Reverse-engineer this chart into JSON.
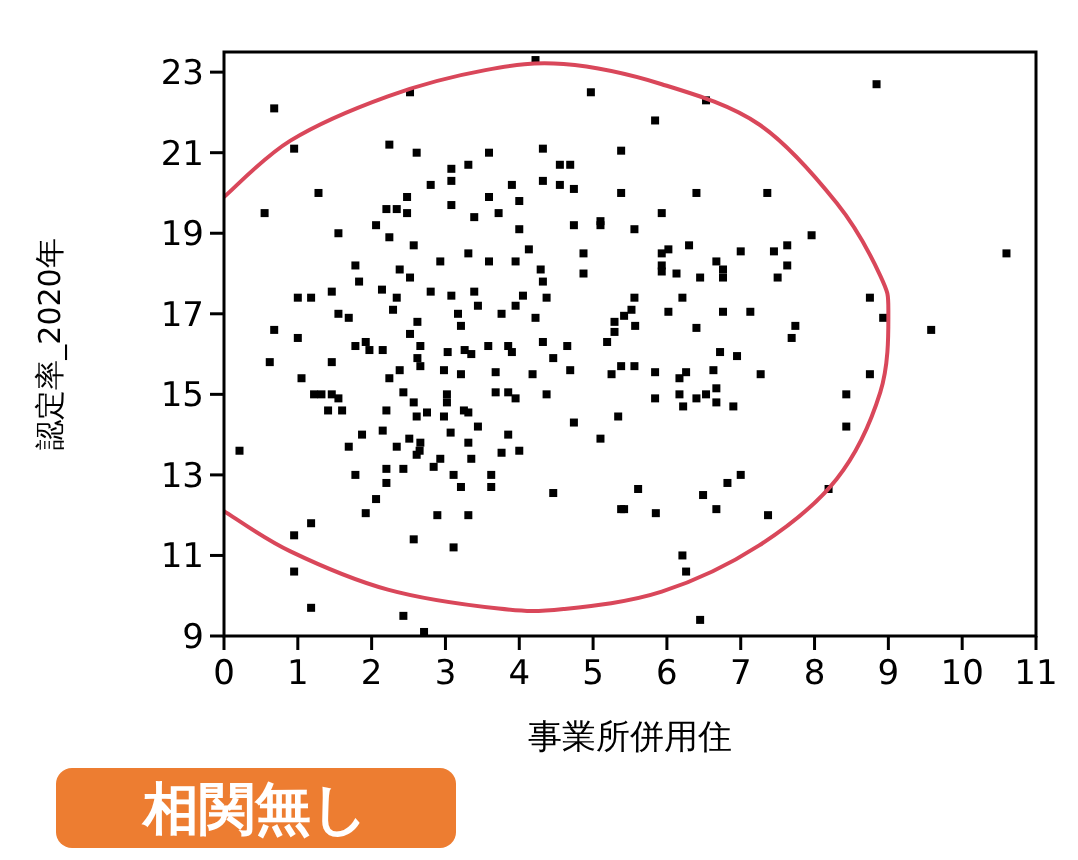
{
  "chart_data": {
    "type": "scatter",
    "xlabel": "事業所併用住",
    "ylabel": "認定率_2020年",
    "annotations": [
      "相関無し"
    ],
    "xlim": [
      0,
      11
    ],
    "ylim": [
      9,
      23.5
    ],
    "xticks": [
      0,
      1,
      2,
      3,
      4,
      5,
      6,
      7,
      8,
      9,
      10,
      11
    ],
    "yticks": [
      9,
      11,
      13,
      15,
      17,
      19,
      21,
      23
    ],
    "series": [
      {
        "marker": "square",
        "color": "#000000",
        "x": [
          0.68,
          0.95,
          1.28,
          0.55,
          2.52,
          4.22,
          4.97,
          2.24,
          2.61,
          3.08,
          3.31,
          3.59,
          4.32,
          4.55,
          4.69,
          2.8,
          3.08,
          3.08,
          2.48,
          2.2,
          2.34,
          2.48,
          3.59,
          3.9,
          4.0,
          4.32,
          4.55,
          4.74,
          5.1,
          5.1,
          3.39,
          3.72,
          4.0,
          4.74,
          1.55,
          2.06,
          2.24,
          2.57,
          3.31,
          3.59,
          3.95,
          4.13,
          4.87,
          2.93,
          1.78,
          2.38,
          4.87,
          4.29,
          1.83,
          2.14,
          2.34,
          2.52,
          2.8,
          3.08,
          3.39,
          4.32,
          4.37,
          4.05,
          1.0,
          1.18,
          1.46,
          2.29,
          3.44,
          3.95,
          3.76,
          4.22,
          3.17,
          3.21,
          2.62,
          1.55,
          1.69,
          0.68,
          1.0,
          5.29,
          1.78,
          1.92,
          1.97,
          2.15,
          2.52,
          2.66,
          3.03,
          3.26,
          3.35,
          3.58,
          3.85,
          3.9,
          4.32,
          4.65,
          5.19,
          0.62,
          1.46,
          1.05,
          2.38,
          2.62,
          2.66,
          2.24,
          2.98,
          3.21,
          3.68,
          4.18,
          4.46,
          4.69,
          5.25,
          5.38,
          1.22,
          1.32,
          1.46,
          1.55,
          1.41,
          1.6,
          2.43,
          2.57,
          3.02,
          3.02,
          3.68,
          3.85,
          3.95,
          4.37,
          2.2,
          2.75,
          2.61,
          2.98,
          3.25,
          3.31,
          4.74,
          5.34,
          2.15,
          3.44,
          3.07,
          1.87,
          2.51,
          2.66,
          2.65,
          2.61,
          3.85,
          5.1,
          0.21,
          1.69,
          2.34,
          3.31,
          3.76,
          4.0,
          3.35,
          2.93,
          2.84,
          2.2,
          2.2,
          2.43,
          1.78,
          3.11,
          3.21,
          3.62,
          3.62,
          4.46,
          2.06,
          1.92,
          1.18,
          0.95,
          2.89,
          3.31,
          2.57,
          3.11,
          0.95,
          1.18,
          2.43,
          2.71,
          5.38,
          6.53,
          8.84,
          5.84,
          5.38,
          5.38,
          6.4,
          7.36,
          5.93,
          5.56,
          7.96,
          5.93,
          6.02,
          6.3,
          7.0,
          7.45,
          7.63,
          5.93,
          5.93,
          6.13,
          6.45,
          6.67,
          6.76,
          6.76,
          7.63,
          7.5,
          10.6,
          8.75,
          8.93,
          9.58,
          5.56,
          5.52,
          5.42,
          5.29,
          5.57,
          6.21,
          6.02,
          6.4,
          6.76,
          7.13,
          7.74,
          7.69,
          6.72,
          5.56,
          5.84,
          5.84,
          6.17,
          6.26,
          6.17,
          6.22,
          6.4,
          6.53,
          6.67,
          6.67,
          6.63,
          6.95,
          6.9,
          7.27,
          8.43,
          8.43,
          8.75,
          5.61,
          5.42,
          5.85,
          6.49,
          6.67,
          6.82,
          7.0,
          7.37,
          8.19,
          6.21,
          6.26,
          6.45
        ],
        "values": [
          22.1,
          21.1,
          20.0,
          19.5,
          22.5,
          23.3,
          22.5,
          21.2,
          21.0,
          20.6,
          20.7,
          21.0,
          21.1,
          20.7,
          20.7,
          20.2,
          20.3,
          19.7,
          19.9,
          19.6,
          19.6,
          19.5,
          19.9,
          20.2,
          19.8,
          20.3,
          20.2,
          20.1,
          19.3,
          19.2,
          19.4,
          19.5,
          19.1,
          19.2,
          19.0,
          19.2,
          18.9,
          18.7,
          18.5,
          18.3,
          18.3,
          18.6,
          18.5,
          18.3,
          18.2,
          18.1,
          18.0,
          18.1,
          17.8,
          17.6,
          17.4,
          17.9,
          17.55,
          17.45,
          17.55,
          17.8,
          17.4,
          17.45,
          17.4,
          17.4,
          17.55,
          17.1,
          17.2,
          17.2,
          17.0,
          16.9,
          17.0,
          16.7,
          16.8,
          17.0,
          16.9,
          16.6,
          16.4,
          16.8,
          16.2,
          16.3,
          16.1,
          16.1,
          16.5,
          16.2,
          16.05,
          16.1,
          16.0,
          16.2,
          16.2,
          16.05,
          16.3,
          16.2,
          16.3,
          15.8,
          15.8,
          15.4,
          15.6,
          15.9,
          15.7,
          15.4,
          15.6,
          15.5,
          15.55,
          15.5,
          15.9,
          15.6,
          15.5,
          15.7,
          15.0,
          15.0,
          15.0,
          14.9,
          14.6,
          14.6,
          15.05,
          14.8,
          15.0,
          14.8,
          15.05,
          15.05,
          14.9,
          15.0,
          14.6,
          14.55,
          14.45,
          14.45,
          14.6,
          14.55,
          14.3,
          14.45,
          14.1,
          14.2,
          14.05,
          14.0,
          13.9,
          13.8,
          13.6,
          13.5,
          14.0,
          13.9,
          13.6,
          13.7,
          13.7,
          13.8,
          13.55,
          13.6,
          13.4,
          13.4,
          13.2,
          13.15,
          12.8,
          13.15,
          13.0,
          13.0,
          12.7,
          13.0,
          12.7,
          12.55,
          12.4,
          12.05,
          11.8,
          11.5,
          12.0,
          12.0,
          11.4,
          11.2,
          10.6,
          9.7,
          9.5,
          9.1,
          12.15,
          22.3,
          22.7,
          21.8,
          21.05,
          20.0,
          20.0,
          20.0,
          19.5,
          19.1,
          18.95,
          18.5,
          18.6,
          18.7,
          18.55,
          18.55,
          18.7,
          18.2,
          18.05,
          18.0,
          17.9,
          18.3,
          18.1,
          17.9,
          18.2,
          17.9,
          18.5,
          17.4,
          16.9,
          16.6,
          17.4,
          17.1,
          16.95,
          16.55,
          16.7,
          17.4,
          17.05,
          16.65,
          17.05,
          17.05,
          16.7,
          16.4,
          16.05,
          15.7,
          15.55,
          14.9,
          15.4,
          15.55,
          15.0,
          14.7,
          14.9,
          15.0,
          15.15,
          14.8,
          15.6,
          15.95,
          14.7,
          15.5,
          15.0,
          14.2,
          15.5,
          12.65,
          12.15,
          12.05,
          12.5,
          12.15,
          12.8,
          13.0,
          12.0,
          12.65,
          11.0,
          10.6,
          9.4
        ]
      },
      {
        "type": "line",
        "marker": "none",
        "color": "#d9475a",
        "x": [
          0,
          0.9,
          2.22,
          3.54,
          4.6,
          5.93,
          7.25,
          8.3,
          8.89,
          9.0,
          8.89,
          8.3,
          7.25,
          5.93,
          4.6,
          3.72,
          2.22,
          0.9,
          0
        ],
        "values": [
          19.9,
          21.3,
          22.4,
          23.05,
          23.2,
          22.7,
          21.7,
          19.75,
          17.95,
          17.0,
          15.05,
          12.9,
          11.25,
          10.1,
          9.67,
          9.68,
          10.15,
          11.1,
          12.1
        ]
      }
    ]
  }
}
